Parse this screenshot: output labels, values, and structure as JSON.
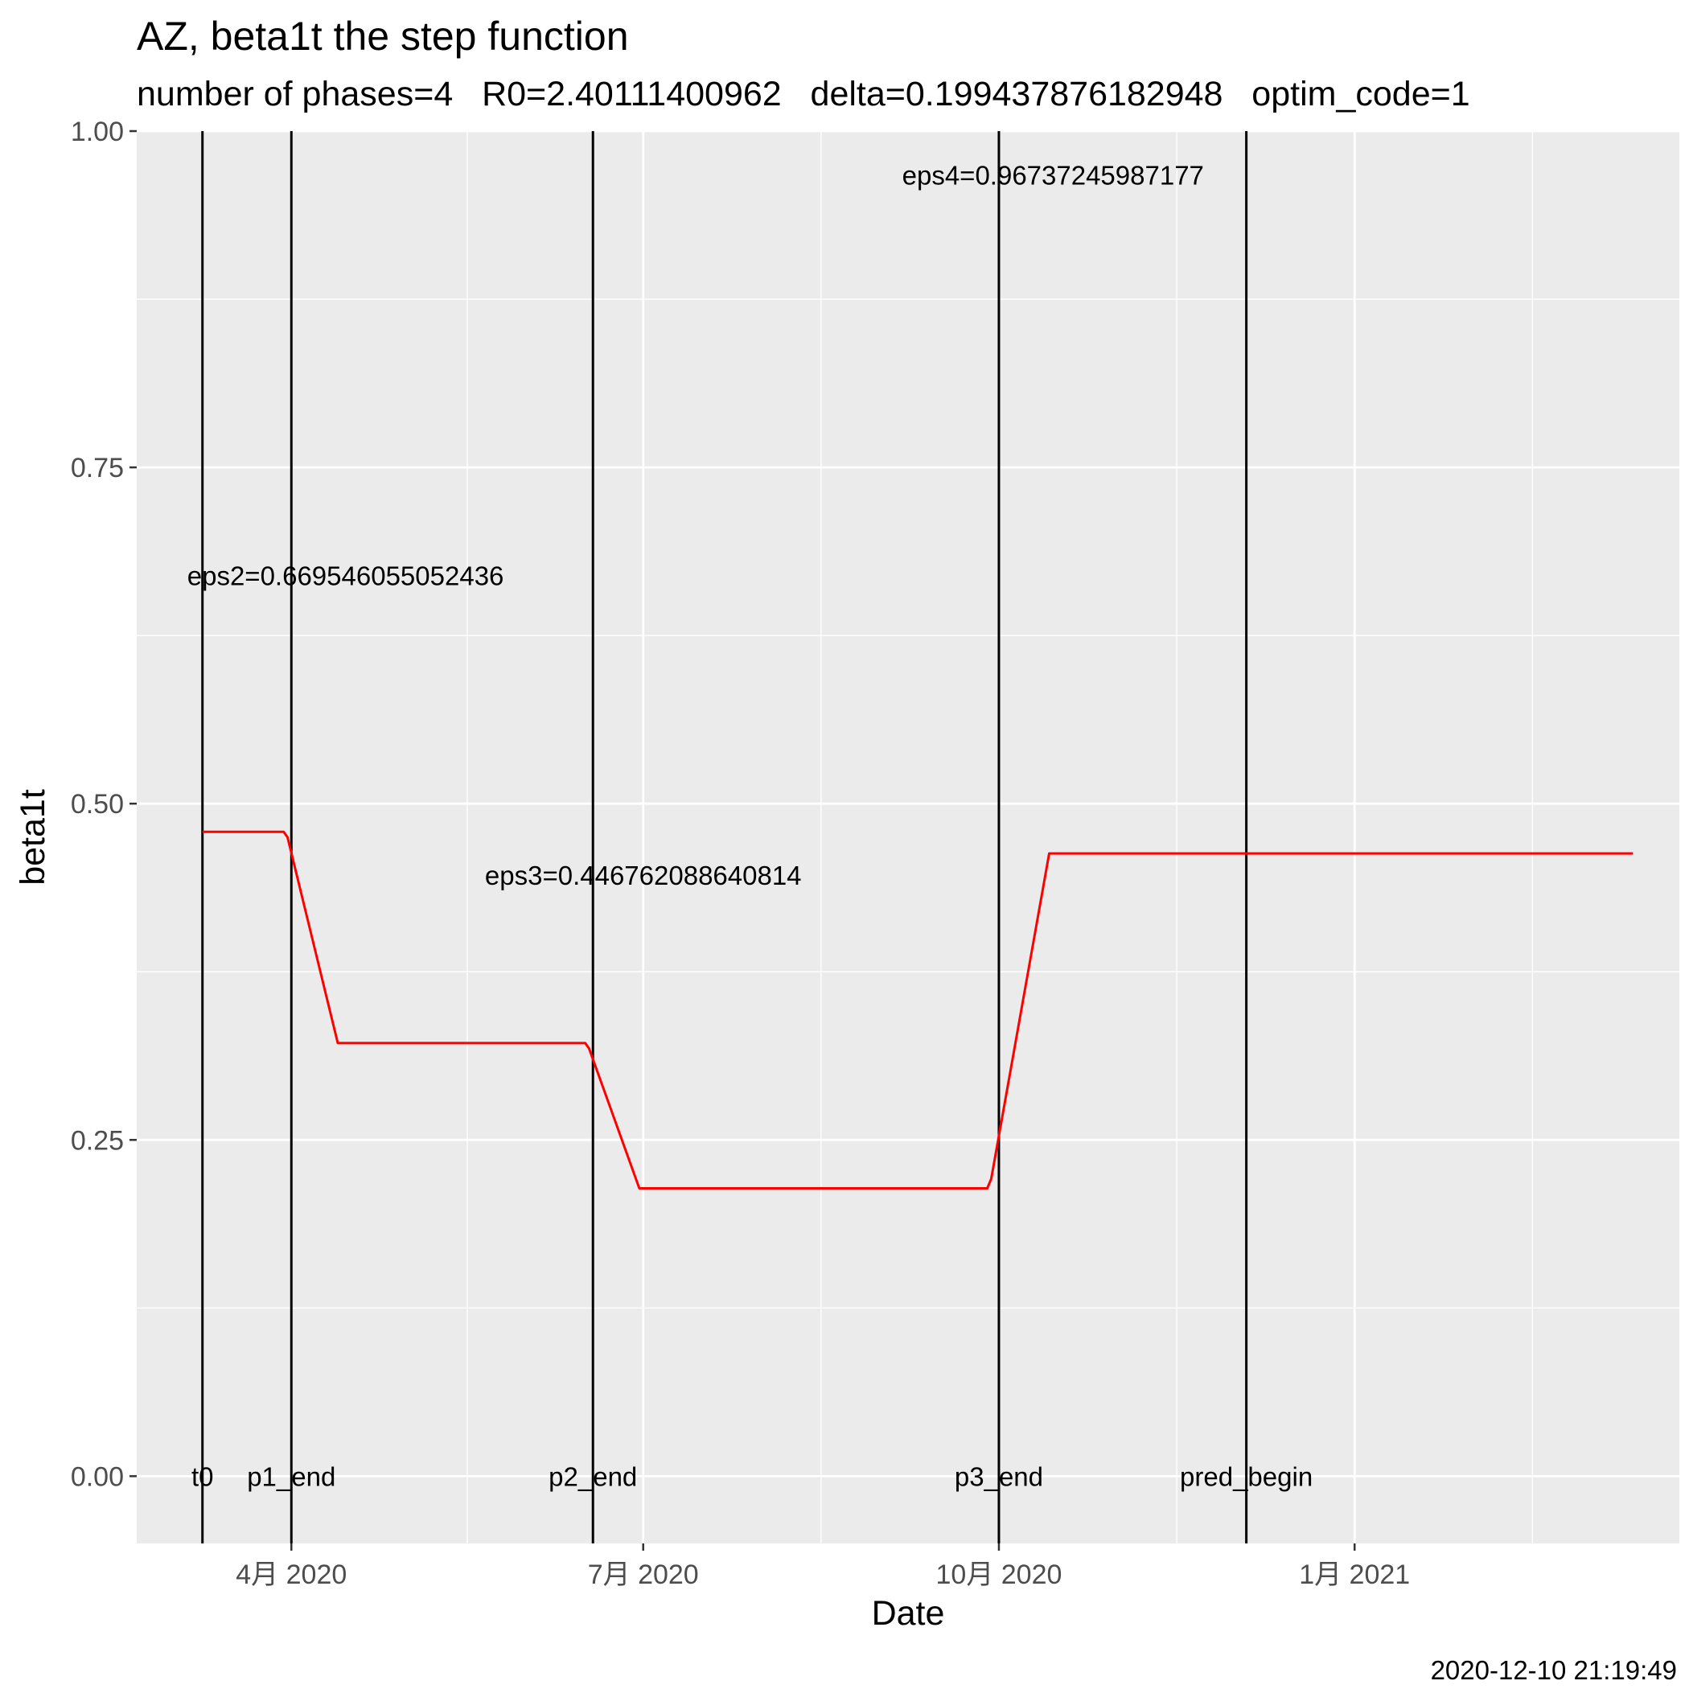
{
  "chart_data": {
    "type": "line",
    "title": "AZ, beta1t the step function",
    "subtitle": "number of phases=4   R0=2.40111400962   delta=0.199437876182948   optim_code=1",
    "xlabel": "Date",
    "ylabel": "beta1t",
    "caption": "2020-12-10 21:19:49",
    "xlim": [
      "2020-02-21",
      "2021-03-26"
    ],
    "ylim": [
      -0.05,
      1.0
    ],
    "grid": true,
    "x_ticks": [
      {
        "date": "2020-04-01",
        "label": "4月 2020"
      },
      {
        "date": "2020-07-01",
        "label": "7月 2020"
      },
      {
        "date": "2020-10-01",
        "label": "10月 2020"
      },
      {
        "date": "2021-01-01",
        "label": "1月 2021"
      }
    ],
    "y_ticks": [
      {
        "value": 0.0,
        "label": "0.00"
      },
      {
        "value": 0.25,
        "label": "0.25"
      },
      {
        "value": 0.5,
        "label": "0.50"
      },
      {
        "value": 0.75,
        "label": "0.75"
      },
      {
        "value": 1.0,
        "label": "1.00"
      }
    ],
    "series": [
      {
        "color": "#FF0000",
        "points": [
          {
            "x": "2020-03-09",
            "y": 0.479
          },
          {
            "x": "2020-03-30",
            "y": 0.479
          },
          {
            "x": "2020-03-31",
            "y": 0.475
          },
          {
            "x": "2020-04-13",
            "y": 0.322
          },
          {
            "x": "2020-06-16",
            "y": 0.322
          },
          {
            "x": "2020-06-17",
            "y": 0.318
          },
          {
            "x": "2020-06-30",
            "y": 0.214
          },
          {
            "x": "2020-09-28",
            "y": 0.214
          },
          {
            "x": "2020-09-29",
            "y": 0.221
          },
          {
            "x": "2020-10-14",
            "y": 0.463
          },
          {
            "x": "2021-03-14",
            "y": 0.463
          }
        ]
      }
    ],
    "vlines": [
      {
        "date": "2020-03-09",
        "label": "t0"
      },
      {
        "date": "2020-04-01",
        "label": "p1_end"
      },
      {
        "date": "2020-06-18",
        "label": "p2_end"
      },
      {
        "date": "2020-10-01",
        "label": "p3_end"
      },
      {
        "date": "2020-12-04",
        "label": "pred_begin"
      }
    ],
    "annotations": [
      {
        "text": "eps2=0.669546055052436",
        "x": "2020-04-15",
        "y": 0.669546055052436
      },
      {
        "text": "eps3=0.446762088640814",
        "x": "2020-07-01",
        "y": 0.446762088640814
      },
      {
        "text": "eps4=0.96737245987177",
        "x": "2020-10-15",
        "y": 0.96737245987177
      }
    ]
  }
}
